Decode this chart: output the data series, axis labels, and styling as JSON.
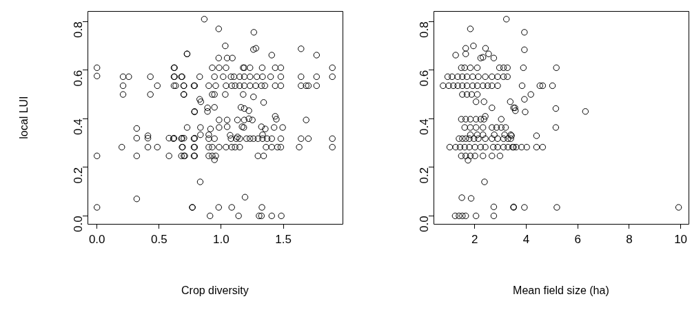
{
  "chart_data": [
    {
      "type": "scatter",
      "xlabel": "Crop diversity",
      "ylabel": "local LUI",
      "xlim": [
        -0.076,
        1.976
      ],
      "ylim": [
        -0.033,
        0.843
      ],
      "xticks": [
        {
          "value": 0,
          "label": "0.0"
        },
        {
          "value": 0.5,
          "label": "0.5"
        },
        {
          "value": 1,
          "label": "1.0"
        },
        {
          "value": 1.5,
          "label": "1.5"
        }
      ],
      "yticks": [
        {
          "value": 0,
          "label": "0.0"
        },
        {
          "value": 0.2,
          "label": "0.2"
        },
        {
          "value": 0.4,
          "label": "0.4"
        },
        {
          "value": 0.6,
          "label": "0.6"
        },
        {
          "value": 0.8,
          "label": "0.8"
        }
      ],
      "grid": false,
      "legend": false,
      "marker": "circle",
      "series": [
        {
          "color": "#000000",
          "x": [
            0,
            0,
            0,
            0,
            0.21,
            0.256,
            0.21,
            0.21,
            0.2,
            0.32,
            0.32,
            0.32,
            0.32,
            0.41,
            0.41,
            0.41,
            0.486,
            0.43,
            0.43,
            0.486,
            0.58,
            0.58,
            0.62,
            0.62,
            0.62,
            0.62,
            0.685,
            0.685,
            0.685,
            0.7,
            0.7,
            0.7,
            0.7,
            0.725,
            0.786,
            0.786,
            0.786,
            0.786,
            0.786,
            0.768,
            0.864,
            0.98,
            1.263,
            1.033,
            1.26,
            1.28,
            1.643,
            0.726,
            0.98,
            1.048,
            1.09,
            1.407,
            1.768,
            0.624,
            0.928,
            0.983,
            1.039,
            1.177,
            1.186,
            1.232,
            1.33,
            1.435,
            1.48,
            1.895,
            0.624,
            0.68,
            0.827,
            0.946,
            1.016,
            1.079,
            1.103,
            1.149,
            1.186,
            1.232,
            1.287,
            1.333,
            1.398,
            1.48,
            1.643,
            1.768,
            1.895,
            0.634,
            0.698,
            0.781,
            0.9,
            0.956,
            1.039,
            1.085,
            1.112,
            1.149,
            1.186,
            1.232,
            1.278,
            1.324,
            1.352,
            1.435,
            1.48,
            1.643,
            1.684,
            1.702,
            1.768,
            0.698,
            0.928,
            0.946,
            1.033,
            1.177,
            1.26,
            0.827,
            0.836,
            1.342,
            0.89,
            0.946,
            0.785,
            0.89,
            1.159,
            1.186,
            1.223,
            0.983,
            1.048,
            1.131,
            1.186,
            1.223,
            1.251,
            1.435,
            1.444,
            1.684,
            0.726,
            0.833,
            0.914,
            0.983,
            1.048,
            1.168,
            1.182,
            1.324,
            1.355,
            1.426,
            1.495,
            0.833,
            0.9,
            1.072,
            1.131,
            1.333,
            0.615,
            0.68,
            0.781,
            0.9,
            0.946,
            1.079,
            1.121,
            1.149,
            1.204,
            1.232,
            1.26,
            1.296,
            1.333,
            1.37,
            1.407,
            1.48,
            1.643,
            1.702,
            1.895,
            0.689,
            0.781,
            0.9,
            0.928,
            0.983,
            1.039,
            1.085,
            1.112,
            1.149,
            1.361,
            1.407,
            1.453,
            1.48,
            1.628,
            1.895,
            0.68,
            0.707,
            0.781,
            0.9,
            0.928,
            0.956,
            1.296,
            1.342,
            0.946,
            0.831,
            1.192,
            0.768,
            0.98,
            1.085,
            1.328,
            0.91,
            1.14,
            1.305,
            1.324,
            1.407,
            1.484
          ],
          "values": [
            0.61,
            0.576,
            0.247,
            0.035,
            0.573,
            0.573,
            0.536,
            0.5,
            0.283,
            0.36,
            0.32,
            0.247,
            0.07,
            0.32,
            0.33,
            0.283,
            0.283,
            0.573,
            0.5,
            0.536,
            0.32,
            0.247,
            0.32,
            0.61,
            0.573,
            0.536,
            0.573,
            0.32,
            0.283,
            0.536,
            0.5,
            0.32,
            0.247,
            0.667,
            0.536,
            0.32,
            0.283,
            0.247,
            0.43,
            0.035,
            0.81,
            0.77,
            0.756,
            0.7,
            0.685,
            0.69,
            0.688,
            0.667,
            0.65,
            0.65,
            0.65,
            0.662,
            0.662,
            0.61,
            0.61,
            0.61,
            0.61,
            0.61,
            0.61,
            0.61,
            0.61,
            0.61,
            0.61,
            0.61,
            0.573,
            0.573,
            0.573,
            0.573,
            0.573,
            0.573,
            0.573,
            0.573,
            0.573,
            0.573,
            0.573,
            0.573,
            0.573,
            0.573,
            0.573,
            0.573,
            0.573,
            0.536,
            0.536,
            0.536,
            0.536,
            0.536,
            0.536,
            0.536,
            0.536,
            0.536,
            0.536,
            0.536,
            0.536,
            0.536,
            0.536,
            0.536,
            0.536,
            0.536,
            0.536,
            0.536,
            0.536,
            0.5,
            0.5,
            0.5,
            0.5,
            0.5,
            0.49,
            0.48,
            0.47,
            0.467,
            0.445,
            0.447,
            0.428,
            0.43,
            0.447,
            0.442,
            0.433,
            0.395,
            0.395,
            0.395,
            0.395,
            0.4,
            0.395,
            0.41,
            0.398,
            0.395,
            0.364,
            0.364,
            0.358,
            0.364,
            0.367,
            0.367,
            0.364,
            0.367,
            0.358,
            0.364,
            0.364,
            0.334,
            0.334,
            0.332,
            0.325,
            0.334,
            0.318,
            0.318,
            0.318,
            0.318,
            0.318,
            0.318,
            0.318,
            0.318,
            0.318,
            0.318,
            0.318,
            0.318,
            0.318,
            0.318,
            0.318,
            0.318,
            0.318,
            0.318,
            0.318,
            0.283,
            0.283,
            0.283,
            0.283,
            0.283,
            0.283,
            0.283,
            0.283,
            0.283,
            0.283,
            0.283,
            0.283,
            0.283,
            0.283,
            0.283,
            0.247,
            0.247,
            0.247,
            0.247,
            0.247,
            0.247,
            0.247,
            0.247,
            0.231,
            0.14,
            0.077,
            0.035,
            0.035,
            0.035,
            0.035,
            0,
            0,
            0,
            0,
            0,
            0
          ]
        }
      ]
    },
    {
      "type": "scatter",
      "xlabel": "Mean field size (ha)",
      "xlim": [
        0.4,
        10.3
      ],
      "ylim": [
        -0.033,
        0.843
      ],
      "xticks": [
        2,
        4,
        6,
        8,
        10
      ],
      "yticks": [
        {
          "value": 0,
          "label": "0.0"
        },
        {
          "value": 0.2,
          "label": "0.2"
        },
        {
          "value": 0.4,
          "label": "0.4"
        },
        {
          "value": 0.6,
          "label": "0.6"
        },
        {
          "value": 0.8,
          "label": "0.8"
        }
      ],
      "grid": false,
      "legend": false,
      "marker": "circle",
      "series": [
        {
          "color": "#000000",
          "x": [
            3.23,
            1.83,
            1.65,
            1.95,
            2.42,
            1.26,
            1.65,
            2.23,
            2.32,
            2.54,
            2.74,
            1.48,
            1.61,
            1.83,
            2.1,
            2.96,
            3.12,
            3.27,
            0.95,
            1.12,
            1.34,
            1.52,
            1.7,
            1.92,
            2.14,
            2.41,
            2.67,
            2.89,
            3.12,
            3.27,
            0.77,
            0.99,
            1.17,
            1.34,
            1.52,
            1.7,
            1.92,
            2.1,
            2.32,
            2.5,
            2.67,
            2.89,
            1.52,
            1.7,
            1.88,
            2.1,
            2.05,
            2.36,
            2.67,
            3.38,
            3.56,
            1.48,
            1.65,
            1.83,
            2.05,
            2.23,
            2.36,
            3.03,
            2.41,
            1.61,
            1.83,
            2.05,
            2.32,
            2.67,
            2.85,
            3.03,
            3.2,
            1.83,
            2.1,
            2.32,
            2.76,
            3.16,
            3.4,
            1.39,
            1.52,
            1.65,
            1.79,
            1.97,
            2.14,
            2.41,
            2.67,
            2.89,
            3.12,
            3.29,
            3.4,
            1.03,
            1.26,
            1.43,
            1.61,
            1.79,
            2.01,
            2.23,
            2.41,
            2.72,
            2.89,
            3.12,
            3.29,
            3.47,
            3.61,
            1.48,
            1.65,
            1.83,
            2.01,
            2.32,
            2.67,
            2.98,
            1.74,
            2.38,
            1.5,
            1.86,
            2.74,
            3.51,
            1.24,
            1.39,
            1.52,
            1.65,
            2.05,
            2.74,
            3.93,
            3.93,
            3.89,
            5.17,
            3.84,
            4.53,
            4.64,
            5.02,
            4.18,
            3.93,
            3.51,
            3.58,
            3.96,
            5.15,
            6.3,
            5.15,
            3.43,
            4.4,
            3.51,
            3.82,
            4.02,
            4.4,
            4.64,
            3.51,
            3.93,
            5.19,
            9.92
          ],
          "values": [
            0.81,
            0.77,
            0.69,
            0.7,
            0.69,
            0.662,
            0.667,
            0.65,
            0.653,
            0.667,
            0.65,
            0.61,
            0.61,
            0.61,
            0.61,
            0.61,
            0.61,
            0.61,
            0.573,
            0.573,
            0.573,
            0.573,
            0.573,
            0.573,
            0.573,
            0.573,
            0.573,
            0.573,
            0.573,
            0.573,
            0.536,
            0.536,
            0.536,
            0.536,
            0.536,
            0.536,
            0.536,
            0.536,
            0.536,
            0.536,
            0.536,
            0.536,
            0.5,
            0.5,
            0.5,
            0.5,
            0.47,
            0.47,
            0.445,
            0.47,
            0.445,
            0.398,
            0.398,
            0.398,
            0.398,
            0.398,
            0.398,
            0.398,
            0.41,
            0.364,
            0.364,
            0.364,
            0.364,
            0.364,
            0.364,
            0.364,
            0.364,
            0.334,
            0.334,
            0.334,
            0.334,
            0.334,
            0.334,
            0.318,
            0.318,
            0.318,
            0.318,
            0.318,
            0.318,
            0.318,
            0.318,
            0.318,
            0.318,
            0.318,
            0.318,
            0.283,
            0.283,
            0.283,
            0.283,
            0.283,
            0.283,
            0.283,
            0.283,
            0.283,
            0.283,
            0.283,
            0.283,
            0.283,
            0.283,
            0.247,
            0.247,
            0.247,
            0.247,
            0.247,
            0.247,
            0.247,
            0.229,
            0.14,
            0.075,
            0.072,
            0.037,
            0.037,
            0,
            0,
            0,
            0,
            0,
            0,
            0.756,
            0.684,
            0.61,
            0.61,
            0.536,
            0.536,
            0.536,
            0.536,
            0.5,
            0.48,
            0.445,
            0.433,
            0.428,
            0.442,
            0.43,
            0.364,
            0.33,
            0.33,
            0.283,
            0.283,
            0.283,
            0.283,
            0.283,
            0.035,
            0.035,
            0.035,
            0.035
          ]
        }
      ]
    }
  ]
}
